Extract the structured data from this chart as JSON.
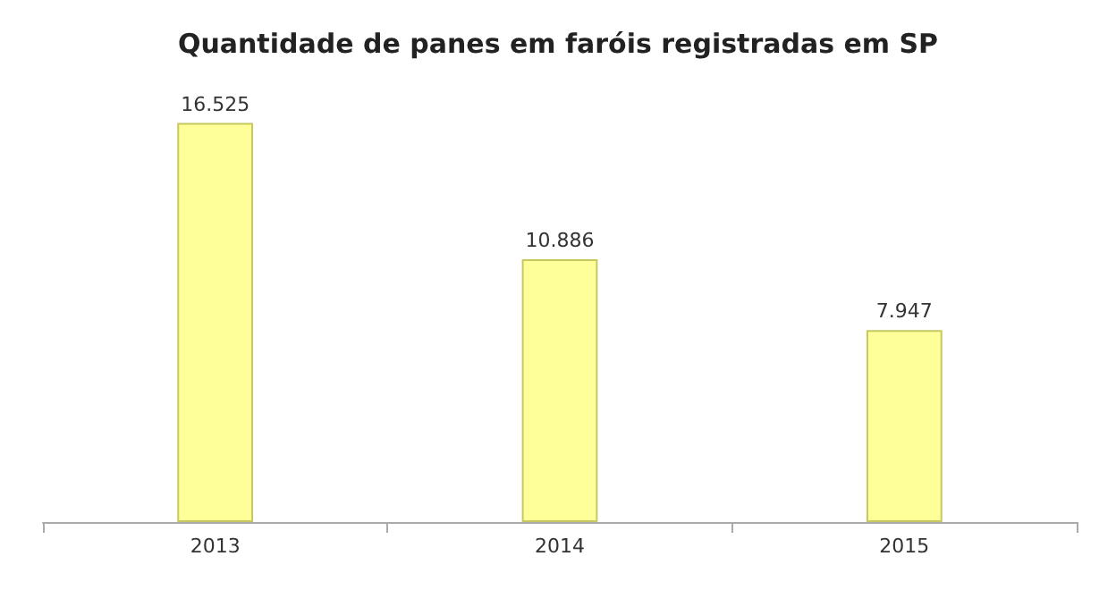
{
  "chart_data": {
    "type": "bar",
    "title": "Quantidade de panes em faróis registradas em SP",
    "categories": [
      "2013",
      "2014",
      "2015"
    ],
    "values": [
      16525,
      10886,
      7947
    ],
    "value_labels": [
      "16.525",
      "10.886",
      "7.947"
    ],
    "color": "#ffff99"
  }
}
